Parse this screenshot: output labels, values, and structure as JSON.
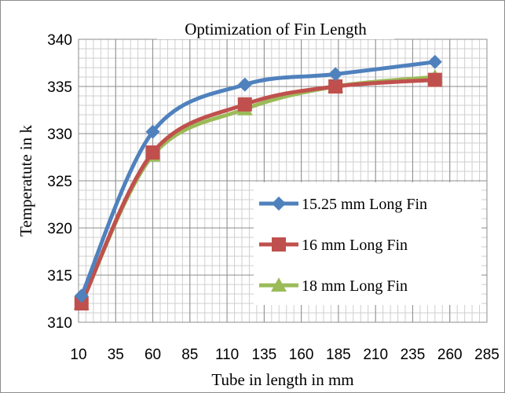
{
  "chart_data": {
    "type": "line",
    "title": "Optimization  of Fin Length",
    "xlabel": "Tube in length in mm",
    "ylabel": "Temperatute in k",
    "xlim": [
      10,
      285
    ],
    "ylim": [
      310,
      340
    ],
    "x_ticks": [
      10,
      35,
      60,
      85,
      110,
      135,
      160,
      185,
      210,
      235,
      260,
      285
    ],
    "y_ticks": [
      310,
      315,
      320,
      325,
      330,
      335,
      340
    ],
    "grid": true,
    "legend_position": "right",
    "series": [
      {
        "name": "15.25 mm Long Fin",
        "color": "#4f81bd",
        "marker": "diamond",
        "x": [
          12,
          60,
          122,
          183,
          250
        ],
        "y": [
          312.8,
          330.2,
          335.2,
          336.3,
          337.6
        ]
      },
      {
        "name": "16 mm Long Fin",
        "color": "#c0504d",
        "marker": "square",
        "x": [
          12,
          60,
          122,
          183,
          250
        ],
        "y": [
          312.0,
          328.0,
          333.1,
          335.0,
          335.7
        ]
      },
      {
        "name": "18 mm Long Fin",
        "color": "#9bbb59",
        "marker": "triangle",
        "x": [
          12,
          60,
          122,
          183,
          250
        ],
        "y": [
          312.0,
          327.7,
          332.6,
          335.0,
          336.0
        ]
      }
    ]
  }
}
